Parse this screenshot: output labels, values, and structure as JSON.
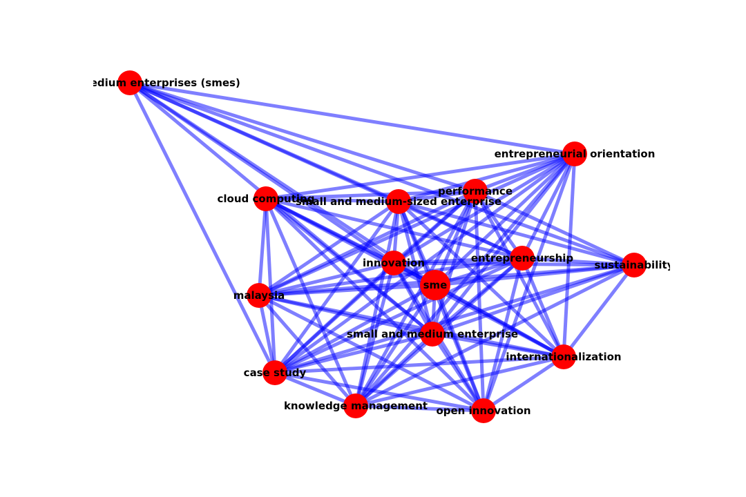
{
  "graph": {
    "node_color": "#ff0000",
    "edge_color": "#0000ff",
    "nodes": [
      {
        "id": "smes",
        "label": "small and medium enterprises (smes)"
      },
      {
        "id": "entrepreneurial_orientation",
        "label": "entrepreneurial orientation"
      },
      {
        "id": "performance",
        "label": "performance"
      },
      {
        "id": "cloud_computing",
        "label": "cloud computing"
      },
      {
        "id": "smse",
        "label": "small and medium-sized enterprise"
      },
      {
        "id": "innovation",
        "label": "innovation"
      },
      {
        "id": "entrepreneurship",
        "label": "entrepreneurship"
      },
      {
        "id": "sustainability",
        "label": "sustainability"
      },
      {
        "id": "sme",
        "label": "sme"
      },
      {
        "id": "malaysia",
        "label": "malaysia"
      },
      {
        "id": "sme2",
        "label": "small and medium enterprise"
      },
      {
        "id": "internationalization",
        "label": "internationalization"
      },
      {
        "id": "case_study",
        "label": "case study"
      },
      {
        "id": "knowledge_management",
        "label": "knowledge management"
      },
      {
        "id": "open_innovation",
        "label": "open innovation"
      }
    ],
    "edges": [
      [
        "smes",
        "smse"
      ],
      [
        "smes",
        "performance"
      ],
      [
        "smes",
        "entrepreneurial_orientation"
      ],
      [
        "smes",
        "innovation"
      ],
      [
        "smes",
        "sme"
      ],
      [
        "smes",
        "entrepreneurship"
      ],
      [
        "smes",
        "sme2"
      ],
      [
        "smes",
        "sustainability"
      ],
      [
        "smes",
        "case_study"
      ],
      [
        "entrepreneurial_orientation",
        "performance"
      ],
      [
        "entrepreneurial_orientation",
        "smse"
      ],
      [
        "entrepreneurial_orientation",
        "innovation"
      ],
      [
        "entrepreneurial_orientation",
        "sme"
      ],
      [
        "entrepreneurial_orientation",
        "entrepreneurship"
      ],
      [
        "entrepreneurial_orientation",
        "sme2"
      ],
      [
        "entrepreneurial_orientation",
        "malaysia"
      ],
      [
        "entrepreneurial_orientation",
        "internationalization"
      ],
      [
        "entrepreneurial_orientation",
        "case_study"
      ],
      [
        "entrepreneurial_orientation",
        "knowledge_management"
      ],
      [
        "entrepreneurial_orientation",
        "open_innovation"
      ],
      [
        "entrepreneurial_orientation",
        "cloud_computing"
      ],
      [
        "performance",
        "smse"
      ],
      [
        "performance",
        "innovation"
      ],
      [
        "performance",
        "sme"
      ],
      [
        "performance",
        "entrepreneurship"
      ],
      [
        "performance",
        "sme2"
      ],
      [
        "performance",
        "malaysia"
      ],
      [
        "performance",
        "internationalization"
      ],
      [
        "performance",
        "knowledge_management"
      ],
      [
        "performance",
        "open_innovation"
      ],
      [
        "performance",
        "sustainability"
      ],
      [
        "performance",
        "case_study"
      ],
      [
        "performance",
        "cloud_computing"
      ],
      [
        "cloud_computing",
        "smse"
      ],
      [
        "cloud_computing",
        "innovation"
      ],
      [
        "cloud_computing",
        "sme"
      ],
      [
        "cloud_computing",
        "malaysia"
      ],
      [
        "cloud_computing",
        "sme2"
      ],
      [
        "cloud_computing",
        "case_study"
      ],
      [
        "cloud_computing",
        "knowledge_management"
      ],
      [
        "cloud_computing",
        "entrepreneurship"
      ],
      [
        "cloud_computing",
        "internationalization"
      ],
      [
        "cloud_computing",
        "open_innovation"
      ],
      [
        "smse",
        "innovation"
      ],
      [
        "smse",
        "sme"
      ],
      [
        "smse",
        "entrepreneurship"
      ],
      [
        "smse",
        "sustainability"
      ],
      [
        "smse",
        "malaysia"
      ],
      [
        "smse",
        "sme2"
      ],
      [
        "smse",
        "internationalization"
      ],
      [
        "smse",
        "case_study"
      ],
      [
        "smse",
        "knowledge_management"
      ],
      [
        "smse",
        "open_innovation"
      ],
      [
        "innovation",
        "sme"
      ],
      [
        "innovation",
        "entrepreneurship"
      ],
      [
        "innovation",
        "sustainability"
      ],
      [
        "innovation",
        "malaysia"
      ],
      [
        "innovation",
        "sme2"
      ],
      [
        "innovation",
        "internationalization"
      ],
      [
        "innovation",
        "case_study"
      ],
      [
        "innovation",
        "knowledge_management"
      ],
      [
        "innovation",
        "open_innovation"
      ],
      [
        "entrepreneurship",
        "sme"
      ],
      [
        "entrepreneurship",
        "sustainability"
      ],
      [
        "entrepreneurship",
        "malaysia"
      ],
      [
        "entrepreneurship",
        "sme2"
      ],
      [
        "entrepreneurship",
        "internationalization"
      ],
      [
        "entrepreneurship",
        "case_study"
      ],
      [
        "entrepreneurship",
        "knowledge_management"
      ],
      [
        "entrepreneurship",
        "open_innovation"
      ],
      [
        "sustainability",
        "sme"
      ],
      [
        "sustainability",
        "malaysia"
      ],
      [
        "sustainability",
        "sme2"
      ],
      [
        "sustainability",
        "internationalization"
      ],
      [
        "sustainability",
        "knowledge_management"
      ],
      [
        "sustainability",
        "case_study"
      ],
      [
        "sme",
        "malaysia"
      ],
      [
        "sme",
        "sme2"
      ],
      [
        "sme",
        "internationalization"
      ],
      [
        "sme",
        "case_study"
      ],
      [
        "sme",
        "knowledge_management"
      ],
      [
        "sme",
        "open_innovation"
      ],
      [
        "malaysia",
        "sme2"
      ],
      [
        "malaysia",
        "internationalization"
      ],
      [
        "malaysia",
        "case_study"
      ],
      [
        "malaysia",
        "knowledge_management"
      ],
      [
        "malaysia",
        "open_innovation"
      ],
      [
        "sme2",
        "internationalization"
      ],
      [
        "sme2",
        "case_study"
      ],
      [
        "sme2",
        "knowledge_management"
      ],
      [
        "sme2",
        "open_innovation"
      ],
      [
        "internationalization",
        "case_study"
      ],
      [
        "internationalization",
        "knowledge_management"
      ],
      [
        "internationalization",
        "open_innovation"
      ],
      [
        "case_study",
        "knowledge_management"
      ],
      [
        "case_study",
        "open_innovation"
      ],
      [
        "knowledge_management",
        "open_innovation"
      ]
    ]
  }
}
